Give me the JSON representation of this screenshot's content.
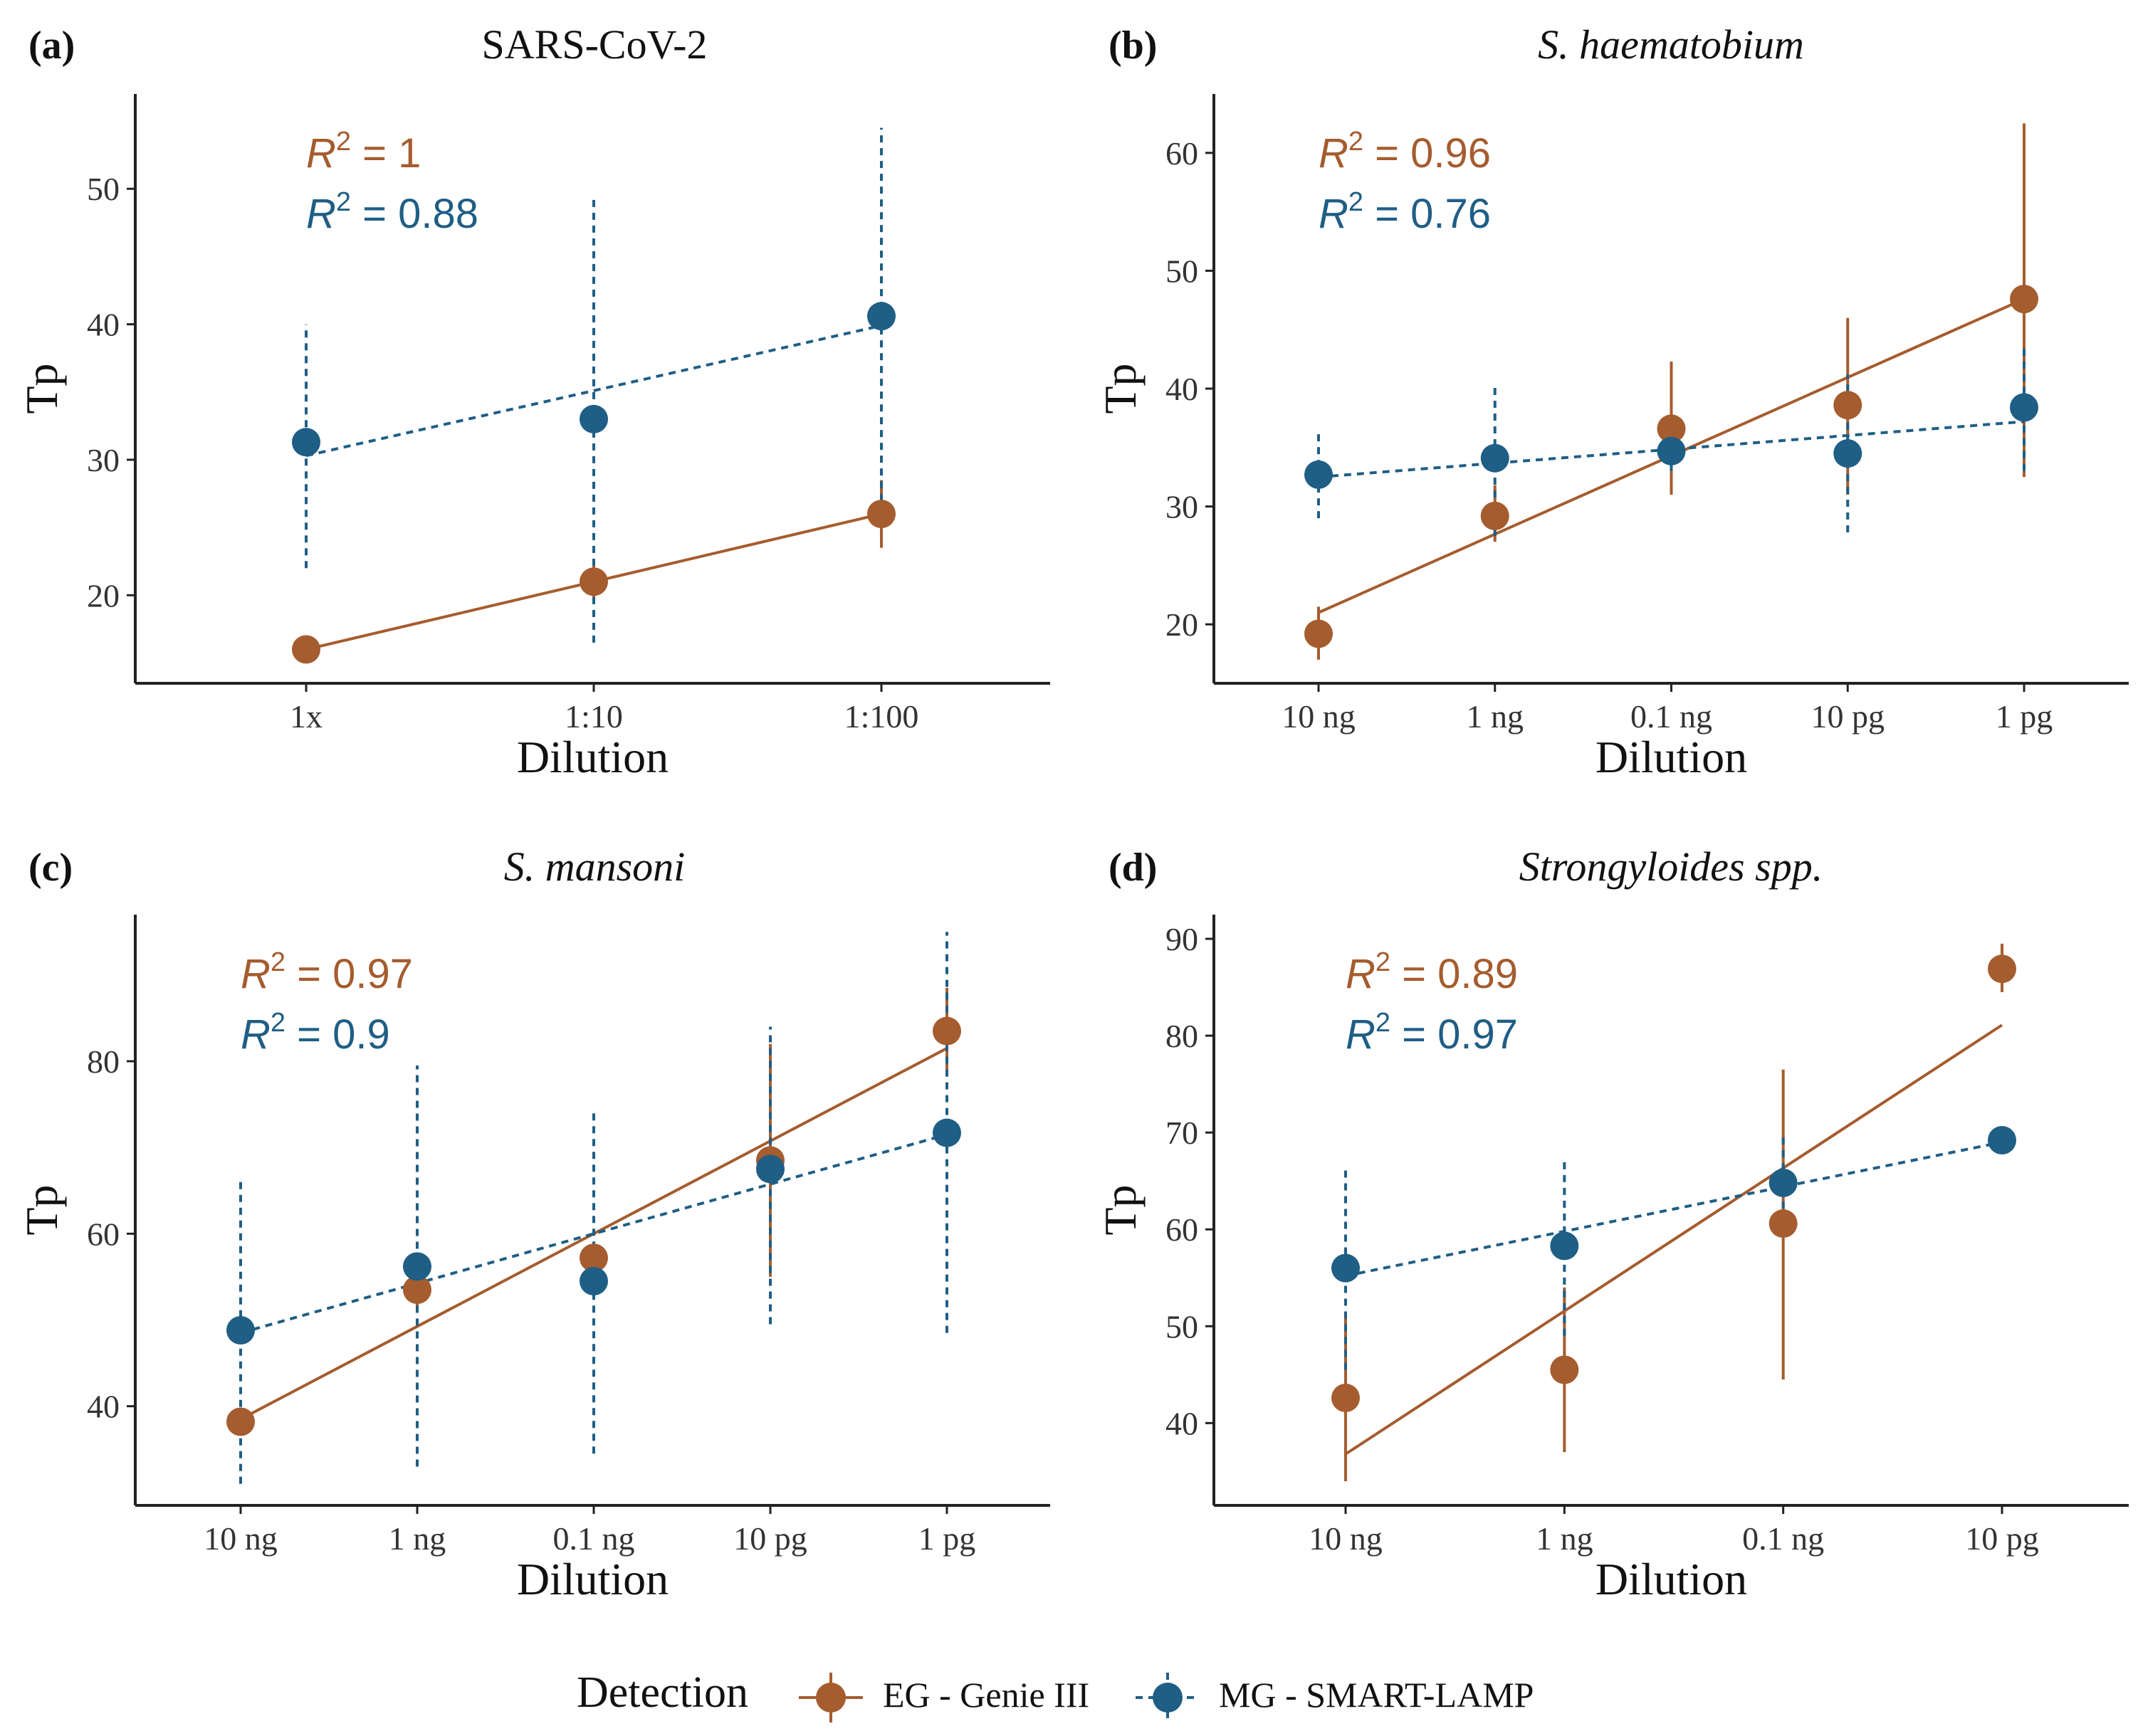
{
  "colors": {
    "eg": "#A55C2E",
    "mg": "#1F5E85",
    "axis": "#222222",
    "text": "#111111"
  },
  "legend": {
    "title": "Detection",
    "eg_label": "EG - Genie III",
    "mg_label": "MG - SMART-LAMP"
  },
  "chart_data": [
    {
      "type": "scatter",
      "panel_label": "(a)",
      "title": "SARS-CoV-2",
      "title_italic": false,
      "xlabel": "Dilution",
      "ylabel": "Tp",
      "categories": [
        "1x",
        "1:10",
        "1:100"
      ],
      "ylim": [
        13.5,
        57
      ],
      "yticks": [
        20,
        30,
        40,
        50
      ],
      "series": [
        {
          "name": "EG - Genie III",
          "key": "eg",
          "values": [
            16,
            21,
            26
          ],
          "err_low": [
            15.5,
            19.5,
            23.5
          ],
          "err_high": [
            16.5,
            22.5,
            28.5
          ],
          "fit": [
            16,
            26
          ]
        },
        {
          "name": "MG - SMART-LAMP",
          "key": "mg",
          "values": [
            31.3,
            33,
            40.6
          ],
          "err_low": [
            22,
            16.5,
            26
          ],
          "err_high": [
            40,
            49.5,
            54.5
          ],
          "fit": [
            30.3,
            39.9
          ]
        }
      ],
      "r2": [
        {
          "key": "eg",
          "prefix": "R",
          "sup": "2",
          "text": " = 1"
        },
        {
          "key": "mg",
          "prefix": "R",
          "sup": "2",
          "text": " = 0.88"
        }
      ]
    },
    {
      "type": "scatter",
      "panel_label": "(b)",
      "title": "S. haematobium",
      "title_italic": true,
      "xlabel": "Dilution",
      "ylabel": "Tp",
      "categories": [
        "10 ng",
        "1 ng",
        "0.1 ng",
        "10 pg",
        "1 pg"
      ],
      "ylim": [
        15,
        65
      ],
      "yticks": [
        20,
        30,
        40,
        50,
        60
      ],
      "series": [
        {
          "name": "EG - Genie III",
          "key": "eg",
          "values": [
            19.2,
            29.2,
            36.6,
            38.6,
            47.6
          ],
          "err_low": [
            17,
            27,
            31,
            31,
            32.5
          ],
          "err_high": [
            21.5,
            31.8,
            42.3,
            46,
            62.5
          ],
          "fit": [
            21,
            47.6
          ]
        },
        {
          "name": "MG - SMART-LAMP",
          "key": "mg",
          "values": [
            32.7,
            34.1,
            34.7,
            34.5,
            38.4
          ],
          "err_low": [
            29,
            27.5,
            33,
            27.8,
            33
          ],
          "err_high": [
            36.5,
            40.5,
            36.4,
            41.2,
            43.8
          ],
          "fit": [
            32.5,
            37.2
          ]
        }
      ],
      "r2": [
        {
          "key": "eg",
          "prefix": "R",
          "sup": "2",
          "text": " = 0.96"
        },
        {
          "key": "mg",
          "prefix": "R",
          "sup": "2",
          "text": " = 0.76"
        }
      ]
    },
    {
      "type": "scatter",
      "panel_label": "(c)",
      "title": "S. mansoni",
      "title_italic": true,
      "xlabel": "Dilution",
      "ylabel": "Tp",
      "categories": [
        "10 ng",
        "1 ng",
        "0.1 ng",
        "10 pg",
        "1 pg"
      ],
      "ylim": [
        28.5,
        97
      ],
      "yticks": [
        40,
        60,
        80
      ],
      "series": [
        {
          "name": "EG - Genie III",
          "key": "eg",
          "values": [
            38.2,
            53.5,
            57.2,
            68.5,
            83.5
          ],
          "err_low": [
            37.5,
            51,
            55.5,
            55,
            79
          ],
          "err_high": [
            39,
            56,
            59,
            82,
            88.5
          ],
          "fit": [
            38.5,
            81.5
          ]
        },
        {
          "name": "MG - SMART-LAMP",
          "key": "mg",
          "values": [
            48.8,
            56.2,
            54.5,
            67.5,
            71.7
          ],
          "err_low": [
            31,
            33,
            34.5,
            49.5,
            48.5
          ],
          "err_high": [
            66.5,
            79.5,
            74.5,
            84,
            95
          ],
          "fit": [
            48.5,
            71.5
          ]
        }
      ],
      "r2": [
        {
          "key": "eg",
          "prefix": "R",
          "sup": "2",
          "text": " = 0.97"
        },
        {
          "key": "mg",
          "prefix": "R",
          "sup": "2",
          "text": " = 0.9"
        }
      ]
    },
    {
      "type": "scatter",
      "panel_label": "(d)",
      "title": "Strongyloides spp.",
      "title_italic": true,
      "xlabel": "Dilution",
      "ylabel": "Tp",
      "categories": [
        "10 ng",
        "1 ng",
        "0.1 ng",
        "10 pg"
      ],
      "ylim": [
        31.5,
        92.5
      ],
      "yticks": [
        40,
        50,
        60,
        70,
        80,
        90
      ],
      "series": [
        {
          "name": "EG - Genie III",
          "key": "eg",
          "values": [
            42.6,
            45.5,
            60.6,
            86.9
          ],
          "err_low": [
            34,
            37,
            44.5,
            84.5
          ],
          "err_high": [
            51,
            54,
            76.5,
            89.5
          ],
          "fit": [
            36.8,
            81.1
          ]
        },
        {
          "name": "MG - SMART-LAMP",
          "key": "mg",
          "values": [
            56,
            58.3,
            64.8,
            69.2
          ],
          "err_low": [
            45.5,
            49,
            59.5,
            68.8
          ],
          "err_high": [
            66.5,
            67.5,
            70,
            69.6
          ],
          "fit": [
            55.2,
            69
          ]
        }
      ],
      "r2": [
        {
          "key": "eg",
          "prefix": "R",
          "sup": "2",
          "text": " = 0.89"
        },
        {
          "key": "mg",
          "prefix": "R",
          "sup": "2",
          "text": " = 0.97"
        }
      ]
    }
  ]
}
